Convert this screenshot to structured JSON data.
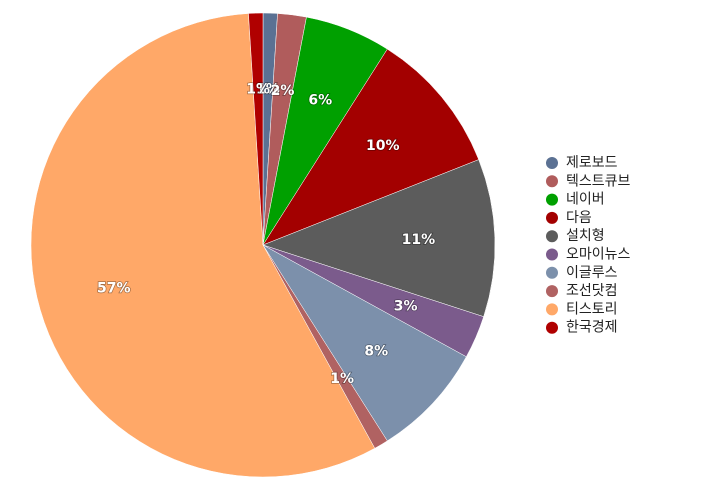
{
  "chart_data": {
    "type": "pie",
    "categories": [
      "제로보드",
      "텍스트큐브",
      "네이버",
      "다음",
      "설치형",
      "오마이뉴스",
      "이글루스",
      "조선닷컴",
      "티스토리",
      "한국경제"
    ],
    "values": [
      1,
      2,
      6,
      10,
      11,
      3,
      8,
      1,
      57,
      1
    ],
    "value_labels": [
      "1%",
      "2%",
      "6%",
      "10%",
      "11%",
      "3%",
      "8%",
      "1%",
      "57%",
      "1%"
    ],
    "colors": [
      "#5b7193",
      "#b05c5c",
      "#00a000",
      "#a30000",
      "#5c5c5c",
      "#7b5b8c",
      "#7c90ab",
      "#b06262",
      "#ffa868",
      "#b00000"
    ],
    "legend": "right"
  }
}
